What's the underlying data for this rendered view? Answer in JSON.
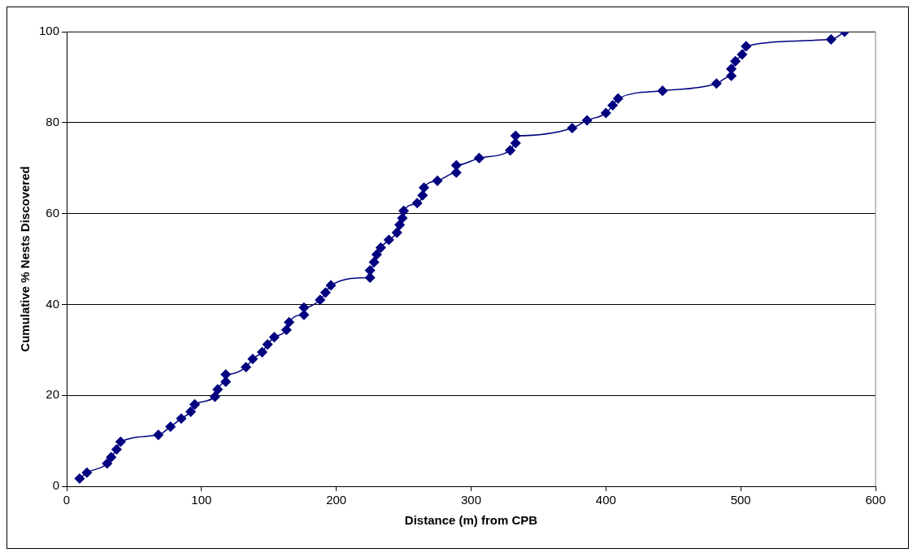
{
  "chart_data": {
    "type": "line",
    "xlabel": "Distance (m) from CPB",
    "ylabel": "Cumulative % Nests Discovered",
    "xlim": [
      0,
      600
    ],
    "xticks": [
      0,
      100,
      200,
      300,
      400,
      500,
      600
    ],
    "ylim": [
      0,
      100
    ],
    "yticks": [
      0,
      20,
      40,
      60,
      80,
      100
    ],
    "grid": "y",
    "legend": false,
    "marker": "diamond",
    "line_style": "solid",
    "series": [
      {
        "color": "#000080",
        "x": [
          9.6,
          15,
          30,
          33,
          37,
          40,
          68,
          77,
          85,
          92,
          95,
          110,
          112,
          118,
          118,
          133,
          138,
          145,
          149,
          154,
          163,
          165,
          176,
          176,
          188,
          192,
          196,
          225,
          225,
          228,
          230,
          233,
          239,
          245,
          247,
          249,
          250,
          260,
          264,
          265,
          275,
          289,
          289,
          306,
          329,
          333,
          333,
          375,
          386,
          400,
          405,
          409,
          442,
          482,
          493,
          493,
          496,
          501,
          504,
          567,
          577
        ],
        "values": [
          1.7,
          3,
          5,
          6.4,
          8.1,
          9.8,
          11.3,
          13.1,
          14.9,
          16.4,
          18,
          19.7,
          21.3,
          23,
          24.6,
          26.2,
          28,
          29.5,
          31.2,
          32.8,
          34.4,
          36.1,
          37.7,
          39.3,
          41,
          42.6,
          44.2,
          45.9,
          47.5,
          49.3,
          51,
          52.5,
          54.2,
          55.8,
          57.5,
          59,
          60.6,
          62.3,
          64,
          65.7,
          67.2,
          69,
          70.6,
          72.2,
          73.9,
          75.5,
          77.1,
          78.8,
          80.5,
          82.1,
          83.8,
          85.3,
          87,
          88.6,
          90.3,
          91.8,
          93.5,
          95,
          96.8,
          98.3,
          100
        ]
      }
    ]
  }
}
